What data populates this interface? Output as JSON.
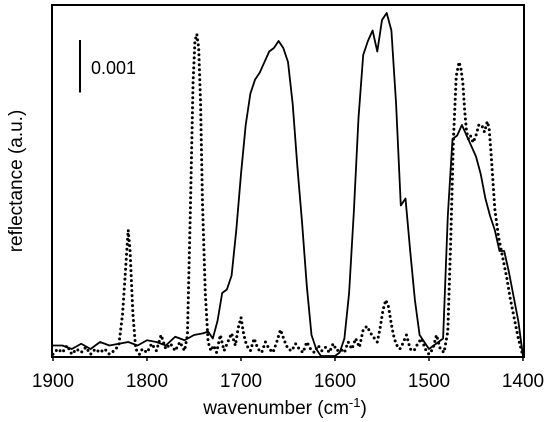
{
  "chart_data": {
    "type": "line",
    "xlabel": "wavenumber (cm",
    "xlabel_superscript": "-1",
    "xlabel_suffix": ")",
    "ylabel": "reflectance (a.u.)",
    "xlim": [
      1900,
      1400
    ],
    "x_reversed": true,
    "ylim": [
      0,
      1.0
    ],
    "x_ticks": [
      1900,
      1800,
      1700,
      1600,
      1500,
      1400
    ],
    "x_tick_labels": [
      "1900",
      "1800",
      "1700",
      "1600",
      "1500",
      "1400"
    ],
    "grid": false,
    "legend": "none",
    "scale_bar": {
      "label": "0.001",
      "value": 0.15
    },
    "series": [
      {
        "style": "solid",
        "color": "#000000",
        "x": [
          1900,
          1890,
          1880,
          1870,
          1860,
          1850,
          1840,
          1830,
          1820,
          1810,
          1800,
          1790,
          1780,
          1770,
          1760,
          1750,
          1740,
          1735,
          1730,
          1725,
          1720,
          1715,
          1710,
          1705,
          1700,
          1695,
          1690,
          1685,
          1680,
          1675,
          1670,
          1665,
          1660,
          1655,
          1650,
          1645,
          1640,
          1635,
          1630,
          1625,
          1620,
          1615,
          1610,
          1605,
          1600,
          1595,
          1590,
          1585,
          1580,
          1575,
          1570,
          1565,
          1560,
          1555,
          1550,
          1545,
          1540,
          1535,
          1530,
          1525,
          1520,
          1515,
          1510,
          1505,
          1500,
          1495,
          1490,
          1485,
          1480,
          1475,
          1470,
          1465,
          1460,
          1455,
          1450,
          1445,
          1440,
          1435,
          1430,
          1425,
          1420,
          1415,
          1410,
          1405,
          1400
        ],
        "y": [
          0.03,
          0.03,
          0.02,
          0.035,
          0.02,
          0.04,
          0.03,
          0.035,
          0.04,
          0.03,
          0.045,
          0.04,
          0.03,
          0.055,
          0.045,
          0.06,
          0.065,
          0.07,
          0.05,
          0.1,
          0.18,
          0.19,
          0.23,
          0.36,
          0.52,
          0.66,
          0.75,
          0.79,
          0.81,
          0.84,
          0.87,
          0.88,
          0.9,
          0.88,
          0.84,
          0.72,
          0.54,
          0.38,
          0.2,
          0.06,
          0.02,
          0.0,
          0.0,
          0.0,
          0.0,
          0.01,
          0.05,
          0.18,
          0.41,
          0.68,
          0.86,
          0.9,
          0.93,
          0.87,
          0.96,
          0.98,
          0.93,
          0.72,
          0.43,
          0.45,
          0.3,
          0.16,
          0.06,
          0.04,
          0.02,
          0.03,
          0.04,
          0.05,
          0.4,
          0.62,
          0.63,
          0.66,
          0.63,
          0.6,
          0.57,
          0.52,
          0.45,
          0.4,
          0.36,
          0.3,
          0.3,
          0.24,
          0.17,
          0.1,
          0.0
        ]
      },
      {
        "style": "dotted",
        "color": "#000000",
        "x": [
          1900,
          1895,
          1890,
          1885,
          1880,
          1875,
          1870,
          1865,
          1860,
          1855,
          1850,
          1845,
          1840,
          1835,
          1830,
          1826,
          1822,
          1820,
          1818,
          1815,
          1812,
          1808,
          1805,
          1800,
          1795,
          1790,
          1785,
          1780,
          1775,
          1770,
          1765,
          1760,
          1757,
          1754,
          1751,
          1749,
          1747,
          1745,
          1743,
          1741,
          1738,
          1735,
          1732,
          1729,
          1726,
          1722,
          1718,
          1714,
          1710,
          1706,
          1703,
          1700,
          1697,
          1694,
          1690,
          1686,
          1682,
          1678,
          1674,
          1670,
          1666,
          1662,
          1658,
          1654,
          1650,
          1646,
          1642,
          1638,
          1634,
          1630,
          1626,
          1622,
          1618,
          1614,
          1610,
          1606,
          1602,
          1598,
          1594,
          1590,
          1586,
          1582,
          1578,
          1574,
          1570,
          1566,
          1562,
          1558,
          1555,
          1552,
          1549,
          1546,
          1543,
          1540,
          1537,
          1534,
          1531,
          1528,
          1524,
          1520,
          1516,
          1512,
          1508,
          1504,
          1500,
          1496,
          1492,
          1488,
          1484,
          1480,
          1477,
          1474,
          1471,
          1468,
          1466,
          1464,
          1462,
          1460,
          1458,
          1456,
          1453,
          1450,
          1447,
          1444,
          1441,
          1438,
          1436,
          1434,
          1432,
          1430,
          1428,
          1426,
          1423,
          1420,
          1417,
          1414,
          1411,
          1408,
          1405,
          1402,
          1400
        ],
        "y": [
          0.005,
          0.02,
          0.01,
          0.03,
          0.005,
          0.02,
          0.01,
          0.025,
          0.005,
          0.02,
          0.01,
          0.02,
          0.005,
          0.015,
          0.03,
          0.12,
          0.28,
          0.36,
          0.3,
          0.12,
          0.02,
          0.005,
          0.02,
          0.01,
          0.035,
          0.015,
          0.06,
          0.02,
          0.035,
          0.015,
          0.04,
          0.015,
          0.06,
          0.4,
          0.78,
          0.9,
          0.92,
          0.88,
          0.72,
          0.44,
          0.18,
          0.04,
          0.015,
          0.03,
          0.01,
          0.06,
          0.015,
          0.04,
          0.065,
          0.03,
          0.08,
          0.11,
          0.06,
          0.03,
          0.015,
          0.05,
          0.02,
          0.01,
          0.04,
          0.02,
          0.01,
          0.04,
          0.075,
          0.045,
          0.02,
          0.015,
          0.035,
          0.02,
          0.01,
          0.04,
          0.02,
          0.01,
          0.03,
          0.015,
          0.025,
          0.01,
          0.035,
          0.015,
          0.02,
          0.01,
          0.04,
          0.02,
          0.05,
          0.025,
          0.075,
          0.085,
          0.065,
          0.05,
          0.04,
          0.08,
          0.13,
          0.16,
          0.14,
          0.09,
          0.05,
          0.03,
          0.02,
          0.035,
          0.06,
          0.02,
          0.015,
          0.035,
          0.05,
          0.02,
          0.005,
          0.02,
          0.06,
          0.02,
          0.01,
          0.07,
          0.32,
          0.62,
          0.8,
          0.84,
          0.82,
          0.78,
          0.7,
          0.64,
          0.62,
          0.63,
          0.61,
          0.63,
          0.66,
          0.66,
          0.64,
          0.67,
          0.65,
          0.58,
          0.5,
          0.42,
          0.38,
          0.34,
          0.3,
          0.26,
          0.22,
          0.17,
          0.13,
          0.09,
          0.05,
          0.02,
          0.0
        ]
      }
    ]
  }
}
